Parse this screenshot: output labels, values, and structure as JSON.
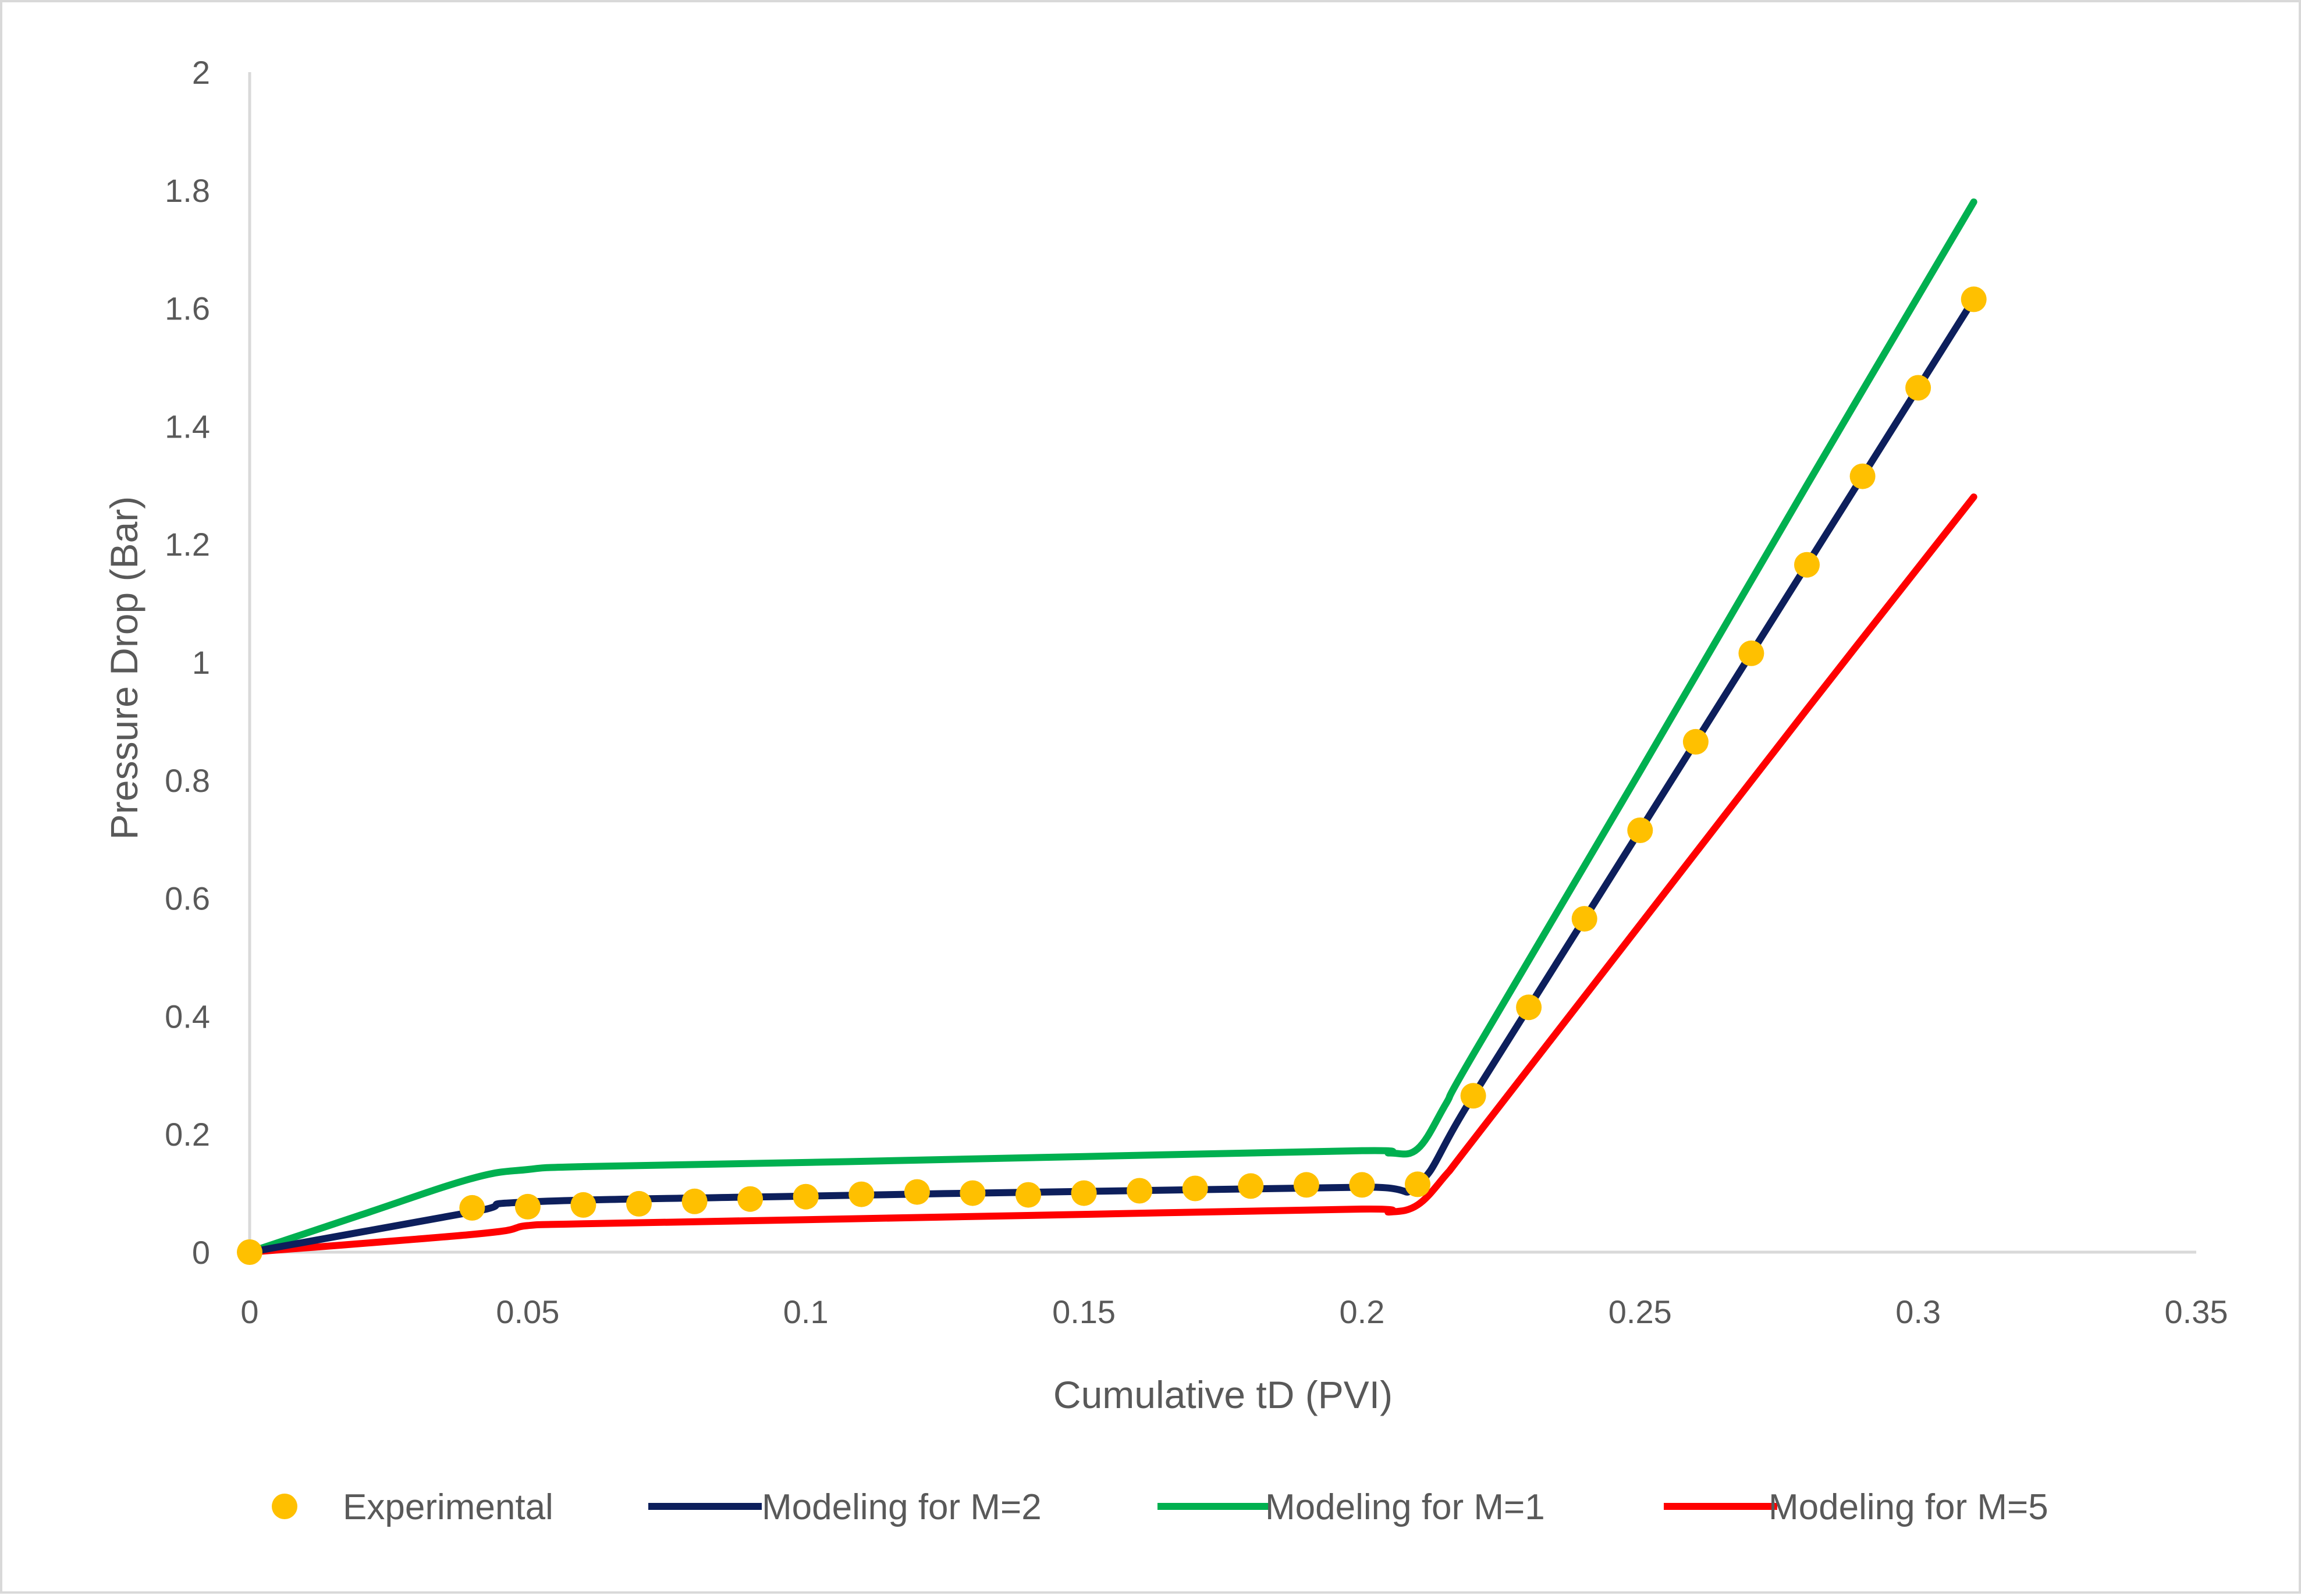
{
  "chart_data": {
    "type": "line",
    "title": "",
    "xlabel": "Cumulative tD (PVI)",
    "ylabel": "Pressure Drop (Bar)",
    "xlim": [
      0,
      0.35
    ],
    "ylim": [
      0,
      2
    ],
    "x_ticks": [
      "0",
      "0.05",
      "0.1",
      "0.15",
      "0.2",
      "0.25",
      "0.3",
      "0.35"
    ],
    "y_ticks": [
      "0",
      "0.2",
      "0.4",
      "0.6",
      "0.8",
      "1",
      "1.2",
      "1.4",
      "1.6",
      "1.8",
      "2"
    ],
    "grid": false,
    "legend_position": "bottom",
    "series": [
      {
        "name": "Experimental",
        "style": "markers",
        "color": "#FFC000",
        "x": [
          0,
          0.04,
          0.05,
          0.06,
          0.07,
          0.08,
          0.09,
          0.1,
          0.11,
          0.12,
          0.13,
          0.14,
          0.15,
          0.16,
          0.17,
          0.18,
          0.19,
          0.2,
          0.21,
          0.22,
          0.23,
          0.24,
          0.25,
          0.26,
          0.27,
          0.28,
          0.29,
          0.3,
          0.31
        ],
        "y": [
          0,
          0.075,
          0.077,
          0.08,
          0.082,
          0.086,
          0.09,
          0.094,
          0.098,
          0.102,
          0.1,
          0.097,
          0.1,
          0.104,
          0.108,
          0.112,
          0.114,
          0.114,
          0.115,
          0.265,
          0.415,
          0.565,
          0.715,
          0.865,
          1.015,
          1.165,
          1.315,
          1.465,
          1.615
        ]
      },
      {
        "name": "Modeling for M=2",
        "style": "line",
        "color": "#0D1F5C",
        "x": [
          0,
          0.04,
          0.05,
          0.1,
          0.15,
          0.2,
          0.21,
          0.22,
          0.25,
          0.28,
          0.31
        ],
        "y": [
          0,
          0.068,
          0.085,
          0.095,
          0.103,
          0.11,
          0.115,
          0.265,
          0.715,
          1.165,
          1.615
        ]
      },
      {
        "name": "Modeling for M=1",
        "style": "line",
        "color": "#00B050",
        "x": [
          0,
          0.02,
          0.04,
          0.05,
          0.06,
          0.1,
          0.15,
          0.2,
          0.205,
          0.21,
          0.215,
          0.22,
          0.25,
          0.28,
          0.31
        ],
        "y": [
          0,
          0.063,
          0.125,
          0.14,
          0.145,
          0.152,
          0.162,
          0.172,
          0.168,
          0.175,
          0.25,
          0.335,
          0.815,
          1.3,
          1.78
        ]
      },
      {
        "name": "Modeling for M=5",
        "style": "line",
        "color": "#FF0000",
        "x": [
          0,
          0.03,
          0.045,
          0.05,
          0.06,
          0.1,
          0.15,
          0.2,
          0.205,
          0.21,
          0.215,
          0.22,
          0.25,
          0.28,
          0.31
        ],
        "y": [
          0,
          0.022,
          0.035,
          0.045,
          0.048,
          0.055,
          0.064,
          0.073,
          0.068,
          0.08,
          0.13,
          0.19,
          0.555,
          0.92,
          1.28
        ]
      }
    ]
  }
}
